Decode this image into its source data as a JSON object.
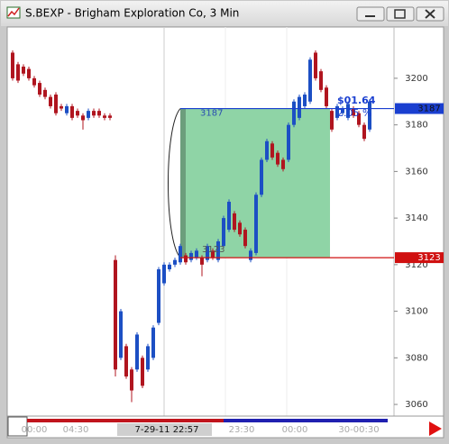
{
  "window": {
    "title": "S.BEXP - Brigham Exploration Co, 3 Min"
  },
  "chart_data": {
    "type": "candlestick",
    "open": [
      3211,
      3206,
      3205,
      3204,
      3200,
      3198,
      3195,
      3192,
      3193,
      3188,
      3185,
      3188,
      3186,
      3184,
      3183,
      3186,
      3186,
      3184,
      3184,
      3122,
      3080,
      3085,
      3075,
      3075,
      3080,
      3075,
      3080,
      3095,
      3112,
      3118,
      3120,
      3121,
      3124,
      3122,
      3123,
      3123,
      3122,
      3126,
      3122,
      3128,
      3135,
      3142,
      3138,
      3135,
      3122,
      3125,
      3150,
      3165,
      3172,
      3168,
      3165,
      3165,
      3180,
      3183,
      3188,
      3190,
      3211,
      3203,
      3196,
      3186,
      3183,
      3185,
      3183,
      3187,
      3185,
      3180,
      3178
    ],
    "high": [
      3212,
      3207,
      3206,
      3205,
      3201,
      3199,
      3196,
      3193,
      3194,
      3189,
      3189,
      3189,
      3187,
      3185,
      3187,
      3187,
      3187,
      3185,
      3185,
      3124,
      3101,
      3086,
      3076,
      3091,
      3081,
      3086,
      3094,
      3119,
      3121,
      3121,
      3123,
      3129,
      3125,
      3126,
      3127,
      3124,
      3129,
      3127,
      3131,
      3141,
      3148,
      3143,
      3139,
      3136,
      3127,
      3151,
      3166,
      3174,
      3173,
      3169,
      3166,
      3181,
      3191,
      3193,
      3194,
      3209,
      3212,
      3204,
      3197,
      3187,
      3189,
      3188,
      3190,
      3188,
      3186,
      3181,
      3191
    ],
    "low": [
      3199,
      3198,
      3201,
      3199,
      3196,
      3192,
      3191,
      3187,
      3184,
      3186,
      3184,
      3182,
      3183,
      3178,
      3182,
      3183,
      3183,
      3182,
      3182,
      3072,
      3079,
      3071,
      3061,
      3074,
      3067,
      3074,
      3079,
      3094,
      3111,
      3117,
      3119,
      3120,
      3120,
      3121,
      3122,
      3115,
      3121,
      3122,
      3121,
      3127,
      3134,
      3134,
      3132,
      3127,
      3121,
      3124,
      3149,
      3164,
      3165,
      3162,
      3160,
      3164,
      3179,
      3182,
      3187,
      3189,
      3199,
      3194,
      3187,
      3177,
      3182,
      3184,
      3182,
      3183,
      3179,
      3173,
      3177
    ],
    "close": [
      3200,
      3199,
      3202,
      3200,
      3197,
      3193,
      3192,
      3188,
      3185,
      3187,
      3188,
      3183,
      3184,
      3182,
      3186,
      3184,
      3184,
      3183,
      3183,
      3075,
      3100,
      3072,
      3066,
      3090,
      3068,
      3085,
      3093,
      3118,
      3120,
      3120,
      3122,
      3128,
      3121,
      3125,
      3126,
      3120,
      3128,
      3123,
      3130,
      3140,
      3147,
      3135,
      3133,
      3128,
      3126,
      3150,
      3165,
      3173,
      3166,
      3163,
      3161,
      3180,
      3190,
      3192,
      3193,
      3208,
      3200,
      3195,
      3188,
      3178,
      3188,
      3187,
      3189,
      3184,
      3180,
      3174,
      3190
    ],
    "up_color": "#1c4fc4",
    "down_color": "#b0151f",
    "ylim": [
      3055,
      3222
    ],
    "yticks": [
      3060,
      3080,
      3100,
      3120,
      3140,
      3160,
      3180,
      3200
    ],
    "levels": [
      {
        "value": 3187,
        "color": "#1a3fd0"
      },
      {
        "value": 3123,
        "color": "#d01010"
      }
    ],
    "zone_color": "#8fd4a6",
    "annotations": [
      "$01.64",
      "2.05 %"
    ],
    "x_labels": [
      "00:00",
      "04:30",
      "7-29-11  22:57",
      "23:30",
      "00:00",
      "30-00:30"
    ]
  }
}
